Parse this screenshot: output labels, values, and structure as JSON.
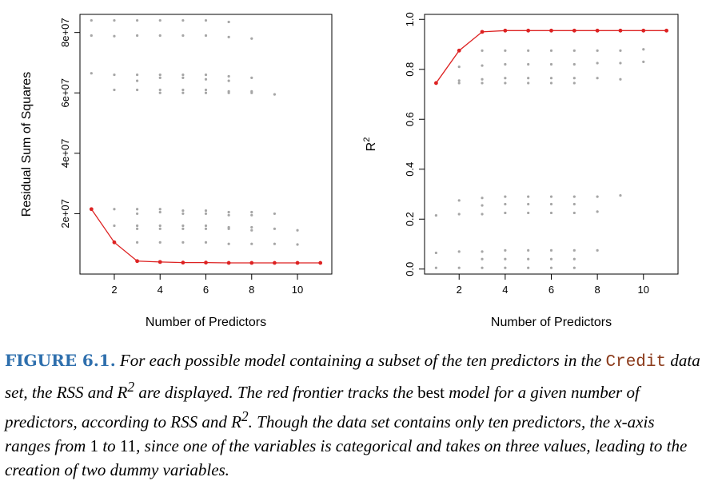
{
  "chart_data": [
    {
      "type": "scatter",
      "xlabel": "Number of Predictors",
      "ylabel": "Residual Sum of Squares",
      "xlim": [
        0.5,
        11.5
      ],
      "ylim": [
        0,
        86000000
      ],
      "xticks": [
        2,
        4,
        6,
        8,
        10
      ],
      "xtick_labels": [
        "2",
        "4",
        "6",
        "8",
        "10"
      ],
      "yticks": [
        20000000,
        40000000,
        60000000,
        80000000
      ],
      "ytick_labels": [
        "2e+07",
        "4e+07",
        "6e+07",
        "8e+07"
      ],
      "points_color": "#a6a6a6",
      "frontier_color": "#dd2222",
      "points": [
        {
          "k": 1,
          "values": [
            84000000,
            79000000,
            66500000,
            21500000
          ]
        },
        {
          "k": 2,
          "values": [
            84000000,
            78800000,
            66000000,
            61000000,
            21500000,
            16000000,
            10500000
          ]
        },
        {
          "k": 3,
          "values": [
            84000000,
            79000000,
            66000000,
            64000000,
            61000000,
            21500000,
            20000000,
            16000000,
            15000000,
            10500000,
            4300000
          ]
        },
        {
          "k": 4,
          "values": [
            84000000,
            79000000,
            66000000,
            65000000,
            61000000,
            60000000,
            21500000,
            20500000,
            16000000,
            15000000,
            10500000,
            4000000
          ]
        },
        {
          "k": 5,
          "values": [
            84000000,
            79000000,
            66000000,
            65000000,
            61000000,
            60000000,
            21000000,
            20000000,
            16000000,
            15000000,
            10500000,
            3800000
          ]
        },
        {
          "k": 6,
          "values": [
            84000000,
            79000000,
            66000000,
            64500000,
            61000000,
            60000000,
            21000000,
            20000000,
            16000000,
            15000000,
            10500000,
            3800000
          ]
        },
        {
          "k": 7,
          "values": [
            83500000,
            78500000,
            65500000,
            64000000,
            60500000,
            60000000,
            20500000,
            19500000,
            15500000,
            15000000,
            10000000,
            3700000
          ]
        },
        {
          "k": 8,
          "values": [
            78000000,
            65000000,
            60500000,
            60000000,
            20500000,
            19500000,
            15500000,
            14500000,
            10000000,
            3700000
          ]
        },
        {
          "k": 9,
          "values": [
            59500000,
            20000000,
            15000000,
            10000000,
            3700000
          ]
        },
        {
          "k": 10,
          "values": [
            14500000,
            9800000,
            3700000
          ]
        },
        {
          "k": 11,
          "values": [
            3700000
          ]
        }
      ],
      "frontier": {
        "x": [
          1,
          2,
          3,
          4,
          5,
          6,
          7,
          8,
          9,
          10,
          11
        ],
        "y": [
          21500000,
          10500000,
          4300000,
          4000000,
          3800000,
          3800000,
          3700000,
          3700000,
          3700000,
          3700000,
          3700000
        ]
      }
    },
    {
      "type": "scatter",
      "xlabel": "Number of Predictors",
      "ylabel": "R",
      "ylabel_sup": "2",
      "xlim": [
        0.5,
        11.5
      ],
      "ylim": [
        -0.02,
        1.02
      ],
      "xticks": [
        2,
        4,
        6,
        8,
        10
      ],
      "xtick_labels": [
        "2",
        "4",
        "6",
        "8",
        "10"
      ],
      "yticks": [
        0.0,
        0.2,
        0.4,
        0.6,
        0.8,
        1.0
      ],
      "ytick_labels": [
        "0.0",
        "0.2",
        "0.4",
        "0.6",
        "0.8",
        "1.0"
      ],
      "points_color": "#a6a6a6",
      "frontier_color": "#dd2222",
      "points": [
        {
          "k": 1,
          "values": [
            0.745,
            0.215,
            0.065,
            0.005
          ]
        },
        {
          "k": 2,
          "values": [
            0.875,
            0.81,
            0.755,
            0.745,
            0.275,
            0.22,
            0.07,
            0.005
          ]
        },
        {
          "k": 3,
          "values": [
            0.95,
            0.875,
            0.815,
            0.76,
            0.745,
            0.285,
            0.255,
            0.22,
            0.07,
            0.04,
            0.005
          ]
        },
        {
          "k": 4,
          "values": [
            0.955,
            0.875,
            0.82,
            0.765,
            0.745,
            0.29,
            0.26,
            0.225,
            0.075,
            0.04,
            0.005
          ]
        },
        {
          "k": 5,
          "values": [
            0.955,
            0.875,
            0.82,
            0.765,
            0.745,
            0.29,
            0.26,
            0.225,
            0.075,
            0.04,
            0.005
          ]
        },
        {
          "k": 6,
          "values": [
            0.955,
            0.875,
            0.82,
            0.765,
            0.745,
            0.29,
            0.26,
            0.225,
            0.075,
            0.04,
            0.005
          ]
        },
        {
          "k": 7,
          "values": [
            0.955,
            0.875,
            0.82,
            0.765,
            0.745,
            0.29,
            0.26,
            0.225,
            0.075,
            0.04,
            0.005
          ]
        },
        {
          "k": 8,
          "values": [
            0.955,
            0.875,
            0.825,
            0.765,
            0.29,
            0.23,
            0.075
          ]
        },
        {
          "k": 9,
          "values": [
            0.955,
            0.875,
            0.825,
            0.76,
            0.295
          ]
        },
        {
          "k": 10,
          "values": [
            0.955,
            0.88,
            0.83
          ]
        },
        {
          "k": 11,
          "values": [
            0.955
          ]
        }
      ],
      "frontier": {
        "x": [
          1,
          2,
          3,
          4,
          5,
          6,
          7,
          8,
          9,
          10,
          11
        ],
        "y": [
          0.745,
          0.875,
          0.95,
          0.955,
          0.955,
          0.955,
          0.955,
          0.955,
          0.955,
          0.955,
          0.955
        ]
      }
    }
  ],
  "caption": {
    "label": "FIGURE 6.1.",
    "part1": " For each possible model containing a subset of the ten predictors in the ",
    "code": "Credit",
    "part2": " data set, the RSS and R",
    "sup1": "2",
    "part3": " are displayed. The red frontier tracks the ",
    "best": "best",
    "part4": " model for a given number of predictors, according to RSS and R",
    "sup2": "2",
    "part5": ". Though the data set contains only ten predictors, the x-axis ranges from ",
    "n1": "1",
    "part6": " to ",
    "n2": "11",
    "part7": ", since one of the variables is categorical and takes on three values, leading to the creation of two dummy variables."
  }
}
